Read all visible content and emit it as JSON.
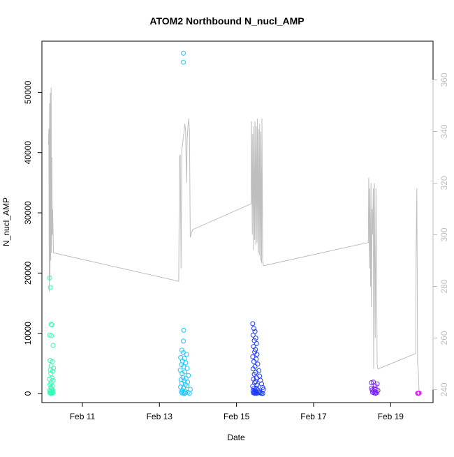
{
  "chart_data": {
    "type": "scatter",
    "title": "ATOM2 Northbound N_nucl_AMP",
    "xlabel": "Date",
    "ylabel": "N_nucl_AMP",
    "x_ticks": [
      "Feb 11",
      "Feb 13",
      "Feb 15",
      "Feb 17",
      "Feb 19"
    ],
    "x_tick_days": [
      11,
      13,
      15,
      17,
      19
    ],
    "xlim_days": [
      9.95,
      20.1
    ],
    "y_ticks": [
      0,
      10000,
      20000,
      30000,
      40000,
      50000
    ],
    "ylim": [
      -1500,
      58500
    ],
    "y2_ticks": [
      240,
      260,
      280,
      300,
      320,
      340,
      360
    ],
    "y2lim": [
      235,
      375
    ],
    "grid": false,
    "legend": "none",
    "colors": {
      "frame": "#000000",
      "right_axis": "#bebebe",
      "line": "#bebebe",
      "cluster_1": "#2effb4",
      "cluster_2": "#1ec6ff",
      "cluster_3": "#1e3cff",
      "cluster_4": "#7a1eff",
      "cluster_5": "#e61eff"
    },
    "series": [
      {
        "kind": "points",
        "color_key": "cluster_1",
        "x_days": [
          10.15,
          10.17,
          10.19,
          10.21,
          10.15,
          10.2,
          10.24,
          10.16,
          10.22,
          10.19,
          10.25,
          10.17,
          10.23,
          10.18,
          10.21,
          10.14,
          10.24,
          10.19,
          10.16,
          10.22,
          10.18,
          10.2,
          10.23,
          10.15,
          10.21,
          10.17,
          10.24,
          10.19,
          10.16,
          10.22,
          10.2,
          10.18
        ],
        "y": [
          19200,
          17600,
          11500,
          11400,
          9700,
          9600,
          8000,
          5500,
          5300,
          4600,
          4200,
          3900,
          3700,
          3300,
          2600,
          2400,
          2200,
          1800,
          1500,
          1300,
          1000,
          800,
          600,
          500,
          400,
          300,
          200,
          150,
          100,
          60,
          30,
          10
        ]
      },
      {
        "kind": "points",
        "color_key": "cluster_2",
        "x_days": [
          13.62,
          13.62,
          13.63,
          13.62,
          13.58,
          13.62,
          13.7,
          13.55,
          13.65,
          13.6,
          13.68,
          13.57,
          13.63,
          13.72,
          13.54,
          13.66,
          13.59,
          13.75,
          13.61,
          13.69,
          13.56,
          13.64,
          13.73,
          13.58,
          13.67,
          13.71,
          13.55,
          13.62,
          13.8,
          13.6,
          13.66,
          13.57,
          13.74,
          13.63,
          13.68,
          13.59,
          13.78,
          13.65
        ],
        "y": [
          56500,
          55000,
          10500,
          8700,
          7200,
          6800,
          6500,
          6000,
          5800,
          5400,
          5100,
          4800,
          4500,
          4200,
          3900,
          3600,
          3300,
          3000,
          2700,
          2500,
          2300,
          2100,
          1900,
          1700,
          1500,
          1300,
          1100,
          900,
          700,
          500,
          400,
          300,
          200,
          150,
          100,
          70,
          40,
          20
        ]
      },
      {
        "kind": "points",
        "color_key": "cluster_3",
        "x_days": [
          15.42,
          15.45,
          15.48,
          15.43,
          15.5,
          15.46,
          15.52,
          15.44,
          15.49,
          15.47,
          15.53,
          15.42,
          15.51,
          15.45,
          15.55,
          15.48,
          15.43,
          15.58,
          15.5,
          15.46,
          15.6,
          15.52,
          15.44,
          15.62,
          15.49,
          15.47,
          15.65,
          15.53,
          15.42,
          15.68,
          15.51,
          15.45,
          15.7,
          15.55,
          15.48,
          15.43,
          15.58,
          15.5,
          15.46,
          15.6,
          15.52,
          15.44,
          15.62,
          15.49,
          15.47,
          15.65,
          15.53,
          15.68
        ],
        "y": [
          11600,
          10800,
          10300,
          9700,
          9200,
          8800,
          8300,
          7800,
          7300,
          6900,
          6500,
          6100,
          5700,
          5300,
          4900,
          4500,
          4100,
          3800,
          3500,
          3200,
          2900,
          2600,
          2400,
          2200,
          2000,
          1800,
          1600,
          1400,
          1200,
          1000,
          900,
          800,
          700,
          600,
          500,
          400,
          350,
          300,
          250,
          200,
          150,
          120,
          90,
          60,
          40,
          30,
          20,
          10
        ]
      },
      {
        "kind": "points",
        "color_key": "cluster_4",
        "x_days": [
          18.5,
          18.55,
          18.6,
          18.65,
          18.5,
          18.58,
          18.62,
          18.52,
          18.67,
          18.56,
          18.6,
          18.53,
          18.64,
          18.57,
          18.61
        ],
        "y": [
          1800,
          1900,
          1300,
          1600,
          900,
          800,
          700,
          600,
          500,
          400,
          300,
          200,
          150,
          100,
          50
        ]
      },
      {
        "kind": "points",
        "color_key": "cluster_5",
        "x_days": [
          19.7,
          19.72,
          19.74,
          19.71,
          19.73
        ],
        "y": [
          50,
          60,
          80,
          40,
          70
        ]
      },
      {
        "kind": "line",
        "axis": "right",
        "color_key": "line",
        "x_days": [
          10.12,
          10.13,
          10.14,
          10.15,
          10.16,
          10.17,
          10.18,
          10.19,
          10.2,
          10.21,
          10.22,
          10.23,
          10.25,
          13.5,
          13.52,
          13.54,
          13.56,
          13.58,
          13.6,
          13.62,
          13.64,
          13.66,
          13.68,
          13.7,
          13.72,
          13.74,
          13.76,
          13.78,
          13.8,
          13.82,
          13.84,
          13.86,
          15.38,
          15.39,
          15.41,
          15.42,
          15.44,
          15.45,
          15.47,
          15.48,
          15.5,
          15.51,
          15.53,
          15.54,
          15.56,
          15.57,
          15.59,
          15.6,
          15.62,
          15.63,
          15.65,
          15.66,
          15.68,
          15.7,
          18.42,
          18.43,
          18.45,
          18.46,
          18.48,
          18.49,
          18.5,
          18.52,
          18.53,
          18.55,
          18.56,
          18.58,
          18.6,
          18.62,
          18.65,
          18.67,
          19.65,
          19.66,
          19.68,
          19.7,
          19.72,
          19.74
        ],
        "y": [
          335,
          341,
          278,
          351,
          282,
          355,
          290,
          357,
          293,
          330,
          300,
          310,
          293,
          282,
          330,
          331,
          287,
          333,
          335,
          338,
          340,
          343,
          340,
          320,
          337,
          342,
          345,
          340,
          299,
          300,
          301,
          302,
          312,
          344,
          300,
          339,
          294,
          342,
          298,
          344,
          296,
          342,
          297,
          345,
          293,
          341,
          292,
          343,
          290,
          340,
          289,
          345,
          290,
          288,
          297,
          322,
          287,
          318,
          280,
          320,
          272,
          310,
          300,
          318,
          248,
          320,
          260,
          318,
          250,
          248,
          254,
          292,
          318,
          250,
          247,
          238
        ]
      }
    ]
  }
}
